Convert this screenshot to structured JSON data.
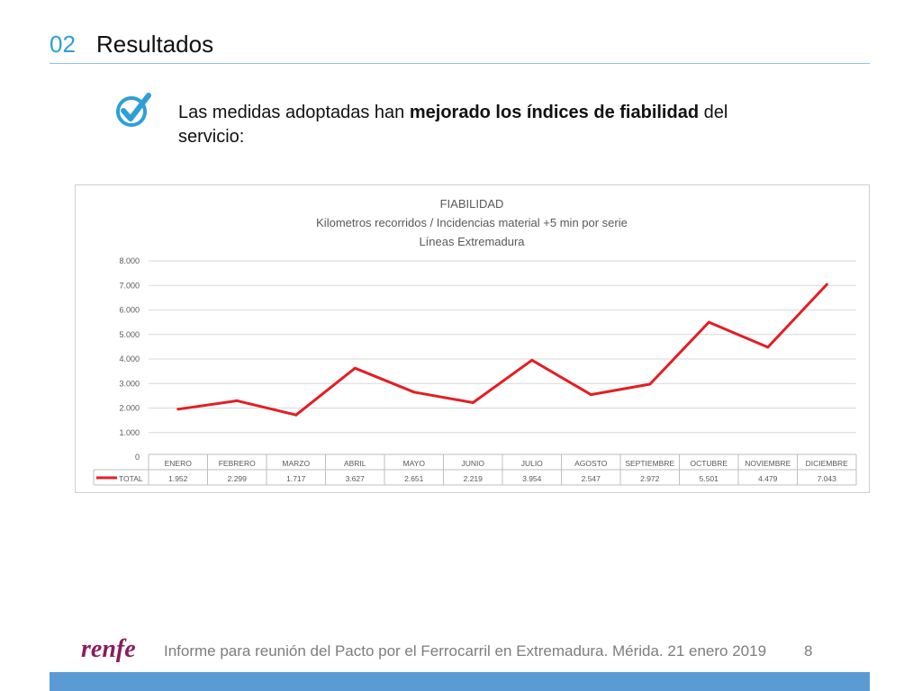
{
  "header": {
    "section_number": "02",
    "section_title": "Resultados"
  },
  "intro": {
    "text_before": "Las medidas adoptadas han ",
    "text_bold": "mejorado los índices de fiabilidad",
    "text_after": " del servicio:"
  },
  "icons": {
    "check": "checkmark-circle-icon",
    "logo": "renfe-logo"
  },
  "colors": {
    "accent": "#2e9fd6",
    "series": "#e31e24",
    "footer_bar": "#5b9bd5"
  },
  "chart_data": {
    "type": "line",
    "title": "FIABILIDAD",
    "subtitle": "Kilometros recorridos / Incidencias material +5 min por serie",
    "subtitle2": "Líneas Extremadura",
    "categories": [
      "ENERO",
      "FEBRERO",
      "MARZO",
      "ABRIL",
      "MAYO",
      "JUNIO",
      "JULIO",
      "AGOSTO",
      "SEPTIEMBRE",
      "OCTUBRE",
      "NOVIEMBRE",
      "DICIEMBRE"
    ],
    "series": [
      {
        "name": "TOTAL",
        "values": [
          1952,
          2299,
          1717,
          3627,
          2651,
          2219,
          3954,
          2547,
          2972,
          5501,
          4479,
          7043
        ],
        "labels": [
          "1.952",
          "2.299",
          "1.717",
          "3.627",
          "2.651",
          "2.219",
          "3.954",
          "2.547",
          "2.972",
          "5.501",
          "4.479",
          "7.043"
        ]
      }
    ],
    "ylim": [
      0,
      8000
    ],
    "yticks": [
      "0",
      "1.000",
      "2.000",
      "3.000",
      "4.000",
      "5.000",
      "6.000",
      "7.000",
      "8.000"
    ],
    "grid": true,
    "legend": "data-table"
  },
  "footer": {
    "logo_text": "renfe",
    "text": "Informe para reunión del Pacto por el Ferrocarril en Extremadura. Mérida. 21 enero 2019",
    "page": "8"
  }
}
